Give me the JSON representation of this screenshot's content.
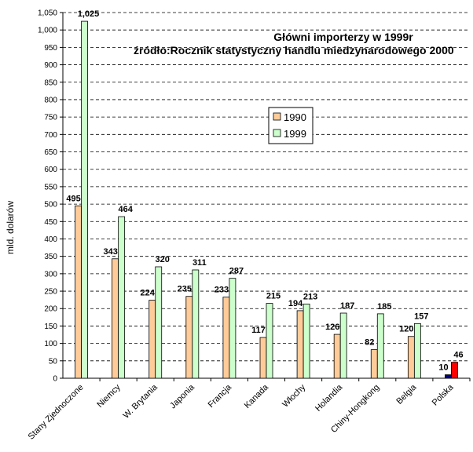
{
  "chart_data": {
    "type": "bar",
    "title": "Główni importerzy w 1999r",
    "subtitle": "źródło:Rocznik statystyczny handlu miedzynarodowego 2000",
    "ylabel": "mld. dolarów",
    "xlabel": "",
    "ylim": [
      0,
      1050
    ],
    "ytick_step": 50,
    "grid": "horizontal-dashed",
    "legend_position": "center-right",
    "categories": [
      "Stany Zjednoczone",
      "Niemcy",
      "W. Brytania",
      "Japonia",
      "Francja",
      "Kanada",
      "Włochy",
      "Holandia",
      "Chiny-Hongkong",
      "Belgia",
      "Polska"
    ],
    "series": [
      {
        "name": "1990",
        "values": [
          495,
          343,
          224,
          235,
          233,
          117,
          194,
          126,
          82,
          120,
          10
        ],
        "color": "#ffcc99"
      },
      {
        "name": "1999",
        "values": [
          1025,
          464,
          320,
          311,
          287,
          215,
          213,
          187,
          185,
          157,
          46
        ],
        "color": "#ccffcc"
      }
    ],
    "highlight_colors": [
      "#000080",
      "#ff0000"
    ]
  }
}
